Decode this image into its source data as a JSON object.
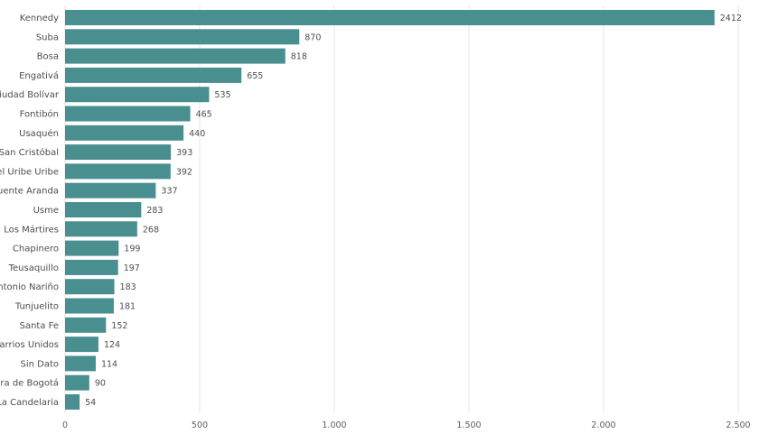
{
  "chart_data": {
    "type": "bar",
    "orientation": "horizontal",
    "categories": [
      "Kennedy",
      "Suba",
      "Bosa",
      "Engativá",
      "Ciudad Bolívar",
      "Fontibón",
      "Usaquén",
      "San Cristóbal",
      "Rafael Uribe Uribe",
      "Puente Aranda",
      "Usme",
      "Los Mártires",
      "Chapinero",
      "Teusaquillo",
      "Antonio Nariño",
      "Tunjuelito",
      "Santa Fe",
      "Barrios Unidos",
      "Sin Dato",
      "Fuera de Bogotá",
      "La Candelaria"
    ],
    "values": [
      2412,
      870,
      818,
      655,
      535,
      465,
      440,
      393,
      392,
      337,
      283,
      268,
      199,
      197,
      183,
      181,
      152,
      124,
      114,
      90,
      54
    ],
    "value_labels": [
      "2412",
      "870",
      "818",
      "655",
      "535",
      "465",
      "440",
      "393",
      "392",
      "337",
      "283",
      "268",
      "199",
      "197",
      "183",
      "181",
      "152",
      "124",
      "114",
      "90",
      "54"
    ],
    "x_ticks": [
      0,
      500,
      1000,
      1500,
      2000,
      2500
    ],
    "x_tick_labels": [
      "0",
      "500",
      "1.000",
      "1.500",
      "2.000",
      "2.500"
    ],
    "xlim": [
      0,
      2500
    ],
    "grid": true,
    "bar_color": "#4a8f8f"
  }
}
